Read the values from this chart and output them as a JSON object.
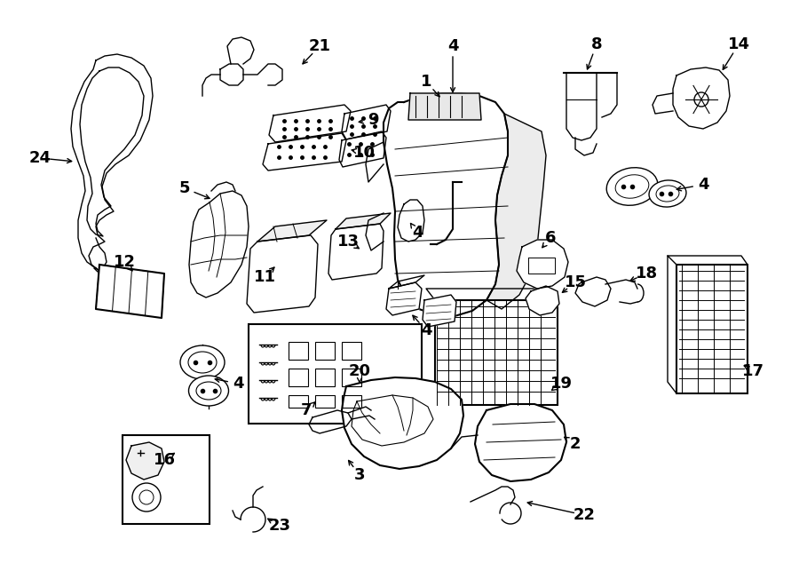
{
  "bg_color": "#ffffff",
  "line_color": "#000000",
  "fig_width": 9.0,
  "fig_height": 6.61,
  "dpi": 100,
  "label_fontsize": 13,
  "arrow_fontsize": 10
}
